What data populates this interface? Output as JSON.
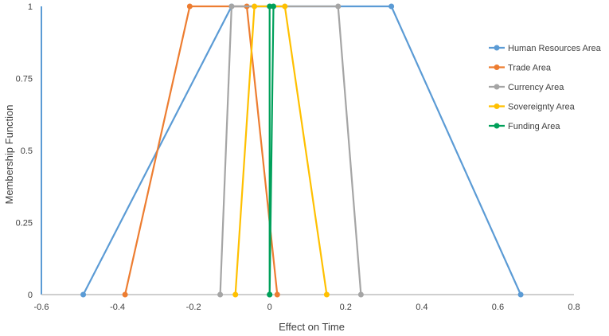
{
  "chart_data": {
    "type": "line",
    "title": "",
    "xlabel": "Effect on Time",
    "ylabel": "Membership Function",
    "xlim": [
      -0.6,
      0.8
    ],
    "ylim": [
      0,
      1
    ],
    "x_ticks": [
      "-0.6",
      "-0.4",
      "-0.2",
      "0",
      "0.2",
      "0.4",
      "0.6",
      "0.8"
    ],
    "y_ticks": [
      "0",
      "0.25",
      "0.5",
      "0.75",
      "1"
    ],
    "x_tick_values": [
      -0.6,
      -0.4,
      -0.2,
      0,
      0.2,
      0.4,
      0.6,
      0.8
    ],
    "y_tick_values": [
      0,
      0.25,
      0.5,
      0.75,
      1
    ],
    "grid": false,
    "legend_position": "right",
    "series": [
      {
        "name": "Human Resources Area",
        "color": "#5B9BD5",
        "points": [
          [
            -0.49,
            0
          ],
          [
            -0.1,
            1
          ],
          [
            0.32,
            1
          ],
          [
            0.66,
            0
          ]
        ]
      },
      {
        "name": "Trade Area",
        "color": "#ED7D31",
        "points": [
          [
            -0.38,
            0
          ],
          [
            -0.21,
            1
          ],
          [
            -0.06,
            1
          ],
          [
            0.02,
            0
          ]
        ]
      },
      {
        "name": "Currency Area",
        "color": "#A5A5A5",
        "points": [
          [
            -0.13,
            0
          ],
          [
            -0.1,
            1
          ],
          [
            0.18,
            1
          ],
          [
            0.24,
            0
          ]
        ]
      },
      {
        "name": "Sovereignty Area",
        "color": "#FFC000",
        "points": [
          [
            -0.09,
            0
          ],
          [
            -0.04,
            1
          ],
          [
            0.04,
            1
          ],
          [
            0.15,
            0
          ]
        ]
      },
      {
        "name": "Funding Area",
        "color": "#00A05A",
        "points": [
          [
            0,
            0
          ],
          [
            0,
            1
          ],
          [
            0.01,
            1
          ],
          [
            0,
            0
          ]
        ]
      }
    ]
  }
}
